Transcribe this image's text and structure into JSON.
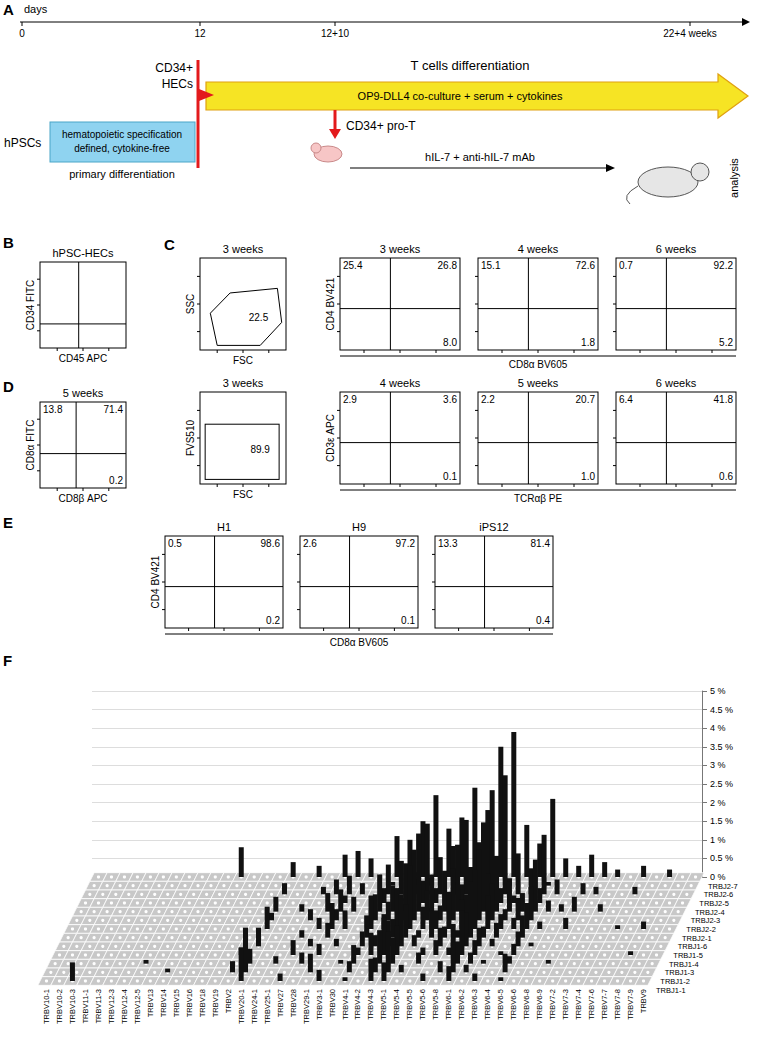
{
  "panel_letters": [
    "A",
    "B",
    "C",
    "D",
    "E",
    "F"
  ],
  "panel_A": {
    "timeline_label": "days",
    "timeline_ticks": [
      "0",
      "12",
      "12+10",
      "22+4 weeks"
    ],
    "start": "hPSCs",
    "box": [
      "hematopoietic specification",
      "defined, cytokine-free"
    ],
    "box_caption": "primary differentiation",
    "hec": [
      "CD34+",
      "HECs"
    ],
    "arrow_title": "T cells differentiation",
    "arrow_text": "OP9-DLL4 co-culture + serum + cytokines",
    "pro_t": "CD34+ pro-T",
    "treatment": "hIL-7 + anti-hIL-7 mAb",
    "end": "analysis"
  },
  "panel_B": {
    "title": "hPSC-HECs",
    "x_label": "CD45 APC",
    "y_label": "CD34 FITC"
  },
  "panel_C": {
    "rows": [
      {
        "gate_plot": {
          "title": "3 weeks",
          "x_label": "FSC",
          "y_label": "SSC",
          "gate": "22.5"
        },
        "x_label": "CD8α BV605",
        "y_label": "CD4 BV421",
        "plots": [
          {
            "title": "3 weeks",
            "quadrants": {
              "upper_left": "25.4",
              "upper_right": "26.8",
              "lower_right": "8.0"
            }
          },
          {
            "title": "4 weeks",
            "quadrants": {
              "upper_left": "15.1",
              "upper_right": "72.6",
              "lower_right": "1.8"
            }
          },
          {
            "title": "6 weeks",
            "quadrants": {
              "upper_left": "0.7",
              "upper_right": "92.2",
              "lower_right": "5.2"
            }
          }
        ]
      },
      {
        "gate_plot": {
          "title": "3 weeks",
          "x_label": "FSC",
          "y_label": "FVS510",
          "gate": "89.9"
        },
        "x_label": "TCRαβ PE",
        "y_label": "CD3ε APC",
        "plots": [
          {
            "title": "4 weeks",
            "quadrants": {
              "upper_left": "2.9",
              "upper_right": "3.6",
              "lower_right": "0.1"
            }
          },
          {
            "title": "5 weeks",
            "quadrants": {
              "upper_left": "2.2",
              "upper_right": "20.7",
              "lower_right": "1.0"
            }
          },
          {
            "title": "6 weeks",
            "quadrants": {
              "upper_left": "6.4",
              "upper_right": "41.8",
              "lower_right": "0.6"
            }
          }
        ]
      }
    ]
  },
  "panel_D": {
    "title": "5 weeks",
    "x_label": "CD8β APC",
    "y_label": "CD8α FITC",
    "quadrants": {
      "upper_left": "13.8",
      "upper_right": "71.4",
      "lower_right": "0.2"
    }
  },
  "panel_E": {
    "x_label": "CD8α BV605",
    "y_label": "CD4 BV421",
    "plots": [
      {
        "title": "H1",
        "quadrants": {
          "upper_left": "0.5",
          "upper_right": "98.6",
          "lower_right": "0.2"
        }
      },
      {
        "title": "H9",
        "quadrants": {
          "upper_left": "2.6",
          "upper_right": "97.2",
          "lower_right": "0.1"
        }
      },
      {
        "title": "iPS12",
        "quadrants": {
          "upper_left": "13.3",
          "upper_right": "81.4",
          "lower_right": "0.4"
        }
      }
    ]
  },
  "chart_data": {
    "type": "bar3d",
    "color": "#111111",
    "grid": true,
    "categories": [
      "TRBV10-1",
      "TRBV10-2",
      "TRBV10-3",
      "TRBV11-1",
      "TRBV11-3",
      "TRBV12-3",
      "TRBV12-4",
      "TRBV12-5",
      "TRBV13",
      "TRBV14",
      "TRBV15",
      "TRBV16",
      "TRBV18",
      "TRBV19",
      "TRBV2",
      "TRBV20-1",
      "TRBV24-1",
      "TRBV25-1",
      "TRBV27",
      "TRBV28",
      "TRBV29-1",
      "TRBV3-1",
      "TRBV30",
      "TRBV4-1",
      "TRBV4-2",
      "TRBV4-3",
      "TRBV5-1",
      "TRBV5-4",
      "TRBV5-5",
      "TRBV5-6",
      "TRBV5-8",
      "TRBV6-1",
      "TRBV6-2",
      "TRBV6-3",
      "TRBV6-4",
      "TRBV6-5",
      "TRBV6-6",
      "TRBV6-8",
      "TRBV6-9",
      "TRBV7-2",
      "TRBV7-3",
      "TRBV7-4",
      "TRBV7-6",
      "TRBV7-7",
      "TRBV7-8",
      "TRBV7-9",
      "TRBV9"
    ],
    "ylim": [
      0,
      5
    ],
    "yticks": [
      {
        "value": 0,
        "label": "0 %"
      },
      {
        "value": 0.5,
        "label": "0.5 %"
      },
      {
        "value": 1,
        "label": "1 %"
      },
      {
        "value": 1.5,
        "label": "1.5 %"
      },
      {
        "value": 2,
        "label": "2 %"
      },
      {
        "value": 2.5,
        "label": "2.5 %"
      },
      {
        "value": 3,
        "label": "3 %"
      },
      {
        "value": 3.5,
        "label": "3.5 %"
      },
      {
        "value": 4,
        "label": "4 %"
      },
      {
        "value": 4.5,
        "label": "4.5 %"
      },
      {
        "value": 5,
        "label": "5 %"
      }
    ],
    "series": [
      {
        "name": "TRBJ1-1",
        "values": [
          0,
          0,
          0.5,
          0,
          0,
          0,
          0,
          0,
          0,
          0,
          0,
          0,
          0,
          0,
          0,
          0.9,
          0,
          0,
          0.2,
          0,
          0,
          0.3,
          0,
          0.1,
          0,
          0.6,
          0.5,
          0,
          0,
          0.2,
          0,
          0.4,
          0,
          0.2,
          0,
          0.1,
          0,
          0,
          0,
          0,
          0,
          0,
          0,
          0,
          0,
          0,
          0
        ]
      },
      {
        "name": "TRBJ1-2",
        "values": [
          0,
          0,
          0,
          0,
          0,
          0,
          0,
          0,
          0,
          0.1,
          0,
          0,
          0,
          0,
          0.3,
          1.2,
          0,
          0,
          0,
          0,
          0.5,
          0,
          0,
          0.3,
          0,
          0.4,
          1.1,
          0.2,
          0,
          0,
          0.3,
          0.8,
          0.2,
          0,
          0,
          0.5,
          0,
          0,
          0,
          0,
          0,
          0,
          0,
          0,
          0,
          0,
          0
        ]
      },
      {
        "name": "TRBJ1-3",
        "values": [
          0,
          0,
          0,
          0,
          0,
          0,
          0,
          0.1,
          0,
          0,
          0,
          0,
          0,
          0,
          0,
          0.4,
          0,
          0.2,
          0,
          0.3,
          0,
          0,
          0.1,
          0.5,
          0,
          0.9,
          0.7,
          0,
          0.3,
          0,
          0,
          0.6,
          0.3,
          0.1,
          0,
          0.2,
          0,
          0,
          0.1,
          0,
          0,
          0,
          0,
          0,
          0,
          0,
          0
        ]
      },
      {
        "name": "TRBJ1-4",
        "values": [
          0,
          0,
          0,
          0,
          0,
          0,
          0,
          0,
          0,
          0,
          0,
          0,
          0,
          0,
          0.2,
          0,
          0,
          0,
          0.4,
          0,
          0.3,
          0,
          0,
          0.2,
          0.6,
          1.0,
          0.8,
          0,
          0.2,
          0.4,
          0.2,
          1.2,
          0.4,
          0,
          0.1,
          0.3,
          0,
          0,
          0,
          0,
          0,
          0,
          0,
          0,
          0.1,
          0,
          0
        ]
      },
      {
        "name": "TRBJ1-5",
        "values": [
          0,
          0,
          0,
          0,
          0,
          0,
          0,
          0,
          0,
          0,
          0,
          0,
          0,
          0,
          0,
          0.5,
          0,
          0,
          0,
          0.2,
          0,
          0.2,
          0,
          0.4,
          0.3,
          0.7,
          1.4,
          0.3,
          0,
          0.5,
          0.6,
          0.9,
          0.5,
          0.2,
          0,
          0.4,
          0.1,
          0,
          0,
          0,
          0,
          0,
          0,
          0,
          0,
          0,
          0
        ]
      },
      {
        "name": "TRBJ1-6",
        "values": [
          0,
          0,
          0,
          0,
          0,
          0,
          0,
          0,
          0,
          0,
          0,
          0,
          0,
          0,
          0,
          0,
          0,
          0,
          0.2,
          0,
          0.4,
          0,
          0,
          0.6,
          0,
          0.5,
          0.9,
          0.2,
          0.8,
          0.3,
          0.2,
          1.5,
          0.3,
          0.4,
          0,
          0.6,
          0,
          0,
          0,
          0,
          0,
          0,
          0,
          0,
          0,
          0,
          0
        ]
      },
      {
        "name": "TRBJ2-1",
        "values": [
          0,
          0,
          0,
          0,
          0,
          0,
          0,
          0,
          0,
          0,
          0,
          0,
          0,
          0,
          0,
          0.6,
          0,
          0,
          0,
          0.3,
          0.7,
          0.5,
          0,
          0.9,
          0.4,
          1.1,
          1.7,
          0.6,
          0.5,
          1.0,
          0.8,
          1.6,
          0.9,
          0.4,
          0.3,
          0.7,
          0.2,
          0,
          0.3,
          0,
          0,
          0,
          0.1,
          0,
          0.2,
          0,
          0
        ]
      },
      {
        "name": "TRBJ2-2",
        "values": [
          0,
          0,
          0,
          0,
          0,
          0,
          0,
          0,
          0,
          0,
          0,
          0,
          0,
          0,
          0,
          0.2,
          0,
          0,
          0.3,
          0,
          0.3,
          0,
          0,
          0.7,
          0.5,
          0.6,
          1.3,
          0.8,
          0.4,
          1.4,
          0.7,
          1.9,
          1.0,
          0.3,
          0.6,
          0.9,
          0,
          0,
          0,
          0,
          0,
          0,
          0,
          0,
          0,
          0,
          0
        ]
      },
      {
        "name": "TRBJ2-3",
        "values": [
          0,
          0,
          0,
          0,
          0,
          0,
          0,
          0,
          0,
          0,
          0,
          0,
          0,
          0,
          0,
          0.4,
          0,
          0.2,
          0,
          0.5,
          0.6,
          0.4,
          0,
          1.0,
          0.7,
          1.3,
          2.1,
          0.9,
          1.1,
          1.8,
          1.2,
          2.4,
          1.5,
          0.8,
          0.5,
          1.4,
          0.3,
          0.2,
          0.4,
          0,
          0.2,
          0,
          0,
          0,
          0,
          0,
          0
        ]
      },
      {
        "name": "TRBJ2-4",
        "values": [
          0,
          0,
          0,
          0,
          0,
          0,
          0,
          0,
          0,
          0,
          0,
          0,
          0,
          0,
          0,
          0,
          0,
          0,
          0,
          0,
          0.2,
          0,
          0,
          0.4,
          0.2,
          0.3,
          0.6,
          0.4,
          0.2,
          0.5,
          0.3,
          0.8,
          0.4,
          0.2,
          0,
          0.4,
          0,
          0,
          0,
          0,
          0,
          0,
          0,
          0,
          0,
          0,
          0
        ]
      },
      {
        "name": "TRBJ2-5",
        "values": [
          0,
          0,
          0,
          0,
          0,
          0,
          0,
          0,
          0,
          0,
          0,
          0,
          0,
          0,
          0,
          0.3,
          0,
          0,
          0.2,
          0.4,
          0.5,
          0.3,
          0,
          0.8,
          0.9,
          1.2,
          1.9,
          1.0,
          1.3,
          2.0,
          1.4,
          2.8,
          3.2,
          1.1,
          0.7,
          1.6,
          0.4,
          0,
          0.3,
          0.2,
          0,
          0,
          0.2,
          0,
          0,
          0,
          0
        ]
      },
      {
        "name": "TRBJ2-6",
        "values": [
          0,
          0,
          0,
          0,
          0,
          0,
          0,
          0,
          0,
          0,
          0,
          0,
          0,
          0,
          0,
          0,
          0,
          0,
          0,
          0,
          0,
          0,
          0,
          0.1,
          0,
          0.2,
          0.3,
          0,
          0.1,
          0.2,
          0.1,
          0.3,
          0.2,
          0,
          0,
          0.1,
          0,
          0,
          0,
          0,
          0,
          0,
          0,
          0,
          0,
          0,
          0
        ]
      },
      {
        "name": "TRBJ2-7",
        "values": [
          0,
          0,
          0,
          0,
          0,
          0,
          0,
          0,
          0,
          0,
          0,
          0.8,
          0,
          0,
          0,
          0.4,
          0,
          0.3,
          0,
          0.6,
          0.7,
          0.5,
          0,
          1.1,
          1.0,
          1.5,
          2.2,
          1.3,
          1.6,
          2.4,
          1.8,
          3.5,
          3.9,
          1.4,
          0.9,
          2.1,
          0.5,
          0.3,
          0.6,
          0.4,
          0.2,
          0,
          0.3,
          0,
          0.2,
          0,
          0
        ]
      }
    ]
  }
}
